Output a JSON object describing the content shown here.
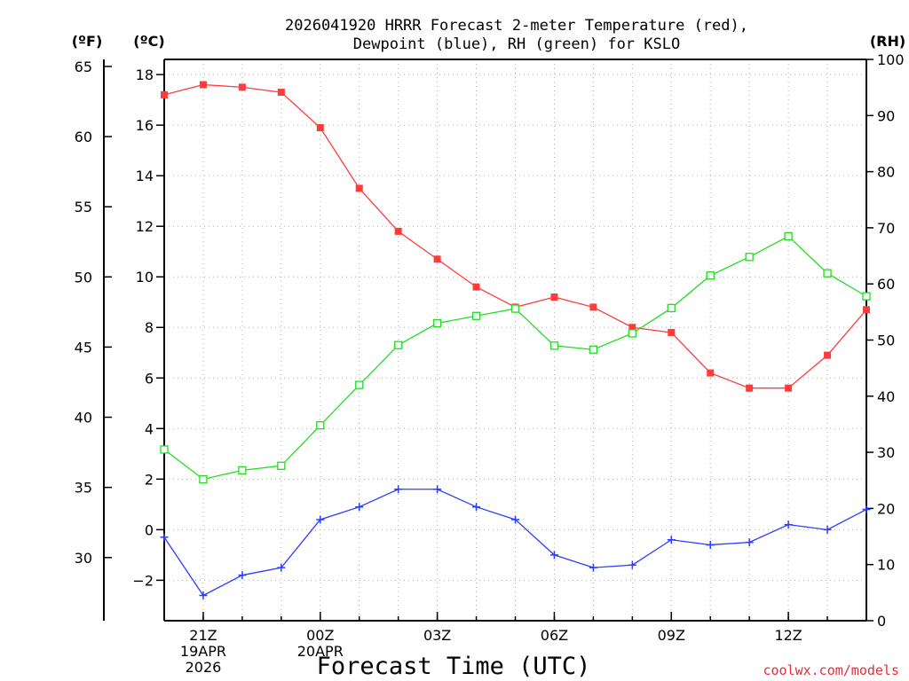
{
  "chart_data": {
    "type": "line",
    "title_line1": "2026041920 HRRR Forecast 2-meter Temperature (red),",
    "title_line2": "Dewpoint (blue), RH (green) for KSLO",
    "xlabel": "Forecast Time (UTC)",
    "credit": "coolwx.com/models",
    "unit_f": "(ºF)",
    "unit_c": "(ºC)",
    "unit_rh": "(RH)",
    "hours": [
      20,
      21,
      22,
      23,
      24,
      25,
      26,
      27,
      28,
      29,
      30,
      31,
      32,
      33,
      34,
      35,
      36,
      37,
      38
    ],
    "x_ticks": [
      {
        "hour": 21,
        "lines": [
          "21Z",
          "19APR",
          "2026"
        ]
      },
      {
        "hour": 24,
        "lines": [
          "00Z",
          "20APR"
        ]
      },
      {
        "hour": 27,
        "lines": [
          "03Z"
        ]
      },
      {
        "hour": 30,
        "lines": [
          "06Z"
        ]
      },
      {
        "hour": 33,
        "lines": [
          "09Z"
        ]
      },
      {
        "hour": 36,
        "lines": [
          "12Z"
        ]
      }
    ],
    "celsius_axis": {
      "ylim": [
        -3.6,
        18.6
      ],
      "ticks": [
        -2,
        0,
        2,
        4,
        6,
        8,
        10,
        12,
        14,
        16,
        18
      ]
    },
    "fahrenheit_axis": {
      "ylim": [
        25.5,
        65.5
      ],
      "ticks": [
        30,
        35,
        40,
        45,
        50,
        55,
        60,
        65
      ]
    },
    "rh_axis": {
      "ylim": [
        0,
        100
      ],
      "ticks": [
        0,
        10,
        20,
        30,
        40,
        50,
        60,
        70,
        80,
        90,
        100
      ]
    },
    "series": [
      {
        "name": "Temperature",
        "color": "#ff3b3b",
        "marker": "filled-square",
        "axis": "celsius",
        "values": [
          17.2,
          17.6,
          17.5,
          17.3,
          15.9,
          13.5,
          11.8,
          10.7,
          9.6,
          8.8,
          9.2,
          8.8,
          8.0,
          7.8,
          6.2,
          5.6,
          5.6,
          6.9,
          8.7
        ]
      },
      {
        "name": "Dewpoint",
        "color": "#2a3cff",
        "marker": "plus",
        "axis": "celsius",
        "values": [
          -0.3,
          -2.6,
          -1.8,
          -1.5,
          0.4,
          0.9,
          1.6,
          1.6,
          0.9,
          0.4,
          -1.0,
          -1.5,
          -1.4,
          -0.4,
          -0.6,
          -0.5,
          0.2,
          0.0,
          0.8
        ]
      },
      {
        "name": "RH",
        "color": "#22dd22",
        "marker": "open-square",
        "axis": "rh",
        "values": [
          30.5,
          25.2,
          26.8,
          27.6,
          34.8,
          42.0,
          49.1,
          53.0,
          54.3,
          55.6,
          49.0,
          48.3,
          51.2,
          55.7,
          61.5,
          64.8,
          68.5,
          61.9,
          57.8
        ]
      }
    ]
  }
}
